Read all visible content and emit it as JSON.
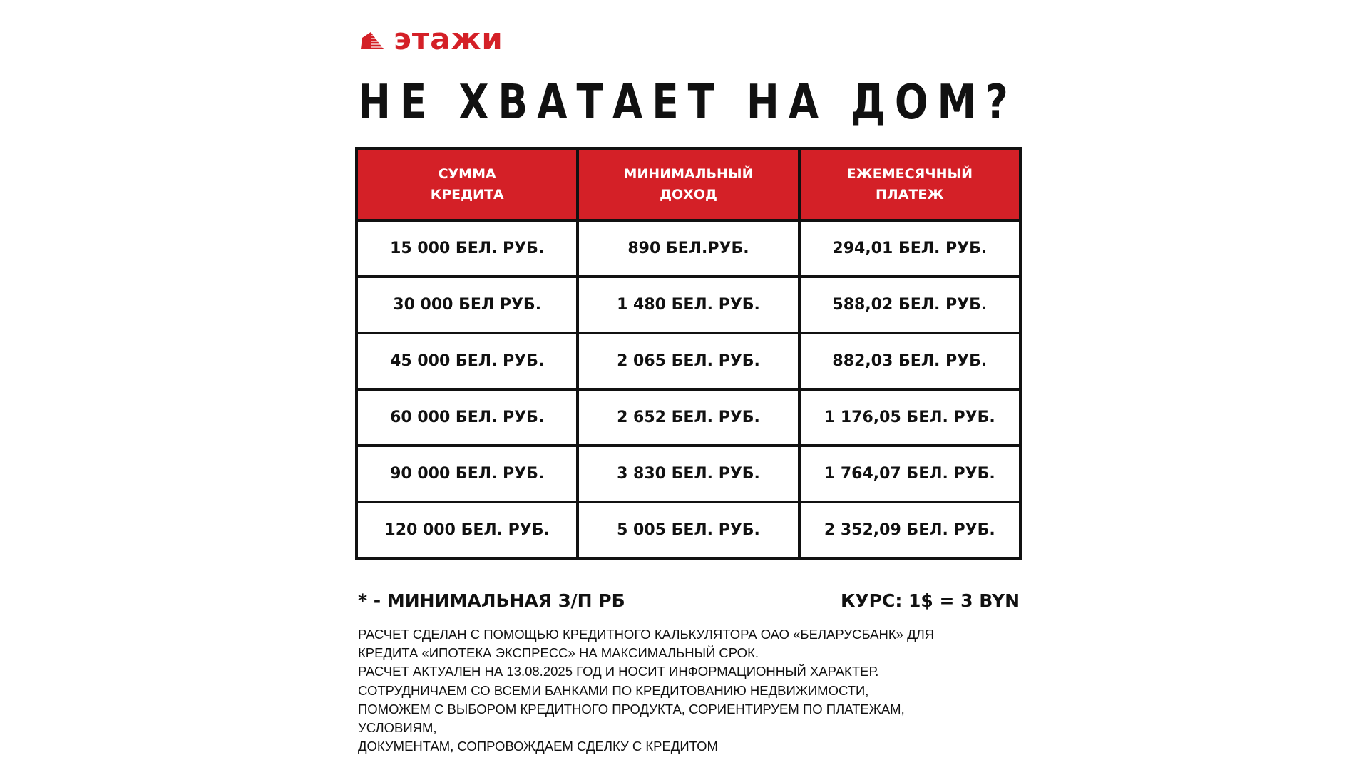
{
  "brand": {
    "name": "этажи",
    "color": "#d42027",
    "icon": "building-icon"
  },
  "title": "НЕ ХВАТАЕТ НА ДОМ?",
  "table": {
    "headers": [
      [
        "СУММА",
        "КРЕДИТА"
      ],
      [
        "МИНИМАЛЬНЫЙ",
        "ДОХОД"
      ],
      [
        "ЕЖЕМЕСЯЧНЫЙ",
        "ПЛАТЕЖ"
      ]
    ],
    "rows": [
      [
        "15 000 БЕЛ. РУБ.",
        "890 БЕЛ.РУБ.",
        "294,01 БЕЛ. РУБ."
      ],
      [
        "30 000 БЕЛ РУБ.",
        "1 480 БЕЛ. РУБ.",
        "588,02 БЕЛ. РУБ."
      ],
      [
        "45 000 БЕЛ. РУБ.",
        "2 065 БЕЛ. РУБ.",
        "882,03 БЕЛ. РУБ."
      ],
      [
        "60 000 БЕЛ. РУБ.",
        "2 652 БЕЛ. РУБ.",
        "1 176,05 БЕЛ. РУБ."
      ],
      [
        "90 000 БЕЛ. РУБ.",
        "3 830 БЕЛ. РУБ.",
        "1 764,07 БЕЛ. РУБ."
      ],
      [
        "120 000 БЕЛ. РУБ.",
        "5 005 БЕЛ. РУБ.",
        "2 352,09 БЕЛ. РУБ."
      ]
    ]
  },
  "footnote": "* - МИНИМАЛЬНАЯ З/П РБ",
  "rate": "КУРС: 1$ = 3 BYN",
  "notes": [
    "РАСЧЕТ СДЕЛАН С ПОМОЩЬЮ КРЕДИТНОГО КАЛЬКУЛЯТОРА ОАО «БЕЛАРУСБАНК» ДЛЯ",
    "КРЕДИТА «ИПОТЕКА ЭКСПРЕСС» НА МАКСИМАЛЬНЫЙ СРОК.",
    "РАСЧЕТ АКТУАЛЕН НА 13.08.2025 ГОД И НОСИТ ИНФОРМАЦИОННЫЙ ХАРАКТЕР.",
    "СОТРУДНИЧАЕМ СО ВСЕМИ БАНКАМИ ПО КРЕДИТОВАНИЮ НЕДВИЖИМОСТИ,",
    "ПОМОЖЕМ С ВЫБОРОМ КРЕДИТНОГО ПРОДУКТА, СОРИЕНТИРУЕМ ПО ПЛАТЕЖАМ,",
    "УСЛОВИЯМ,",
    "ДОКУМЕНТАМ, СОПРОВОЖДАЕМ СДЕЛКУ С КРЕДИТОМ"
  ]
}
